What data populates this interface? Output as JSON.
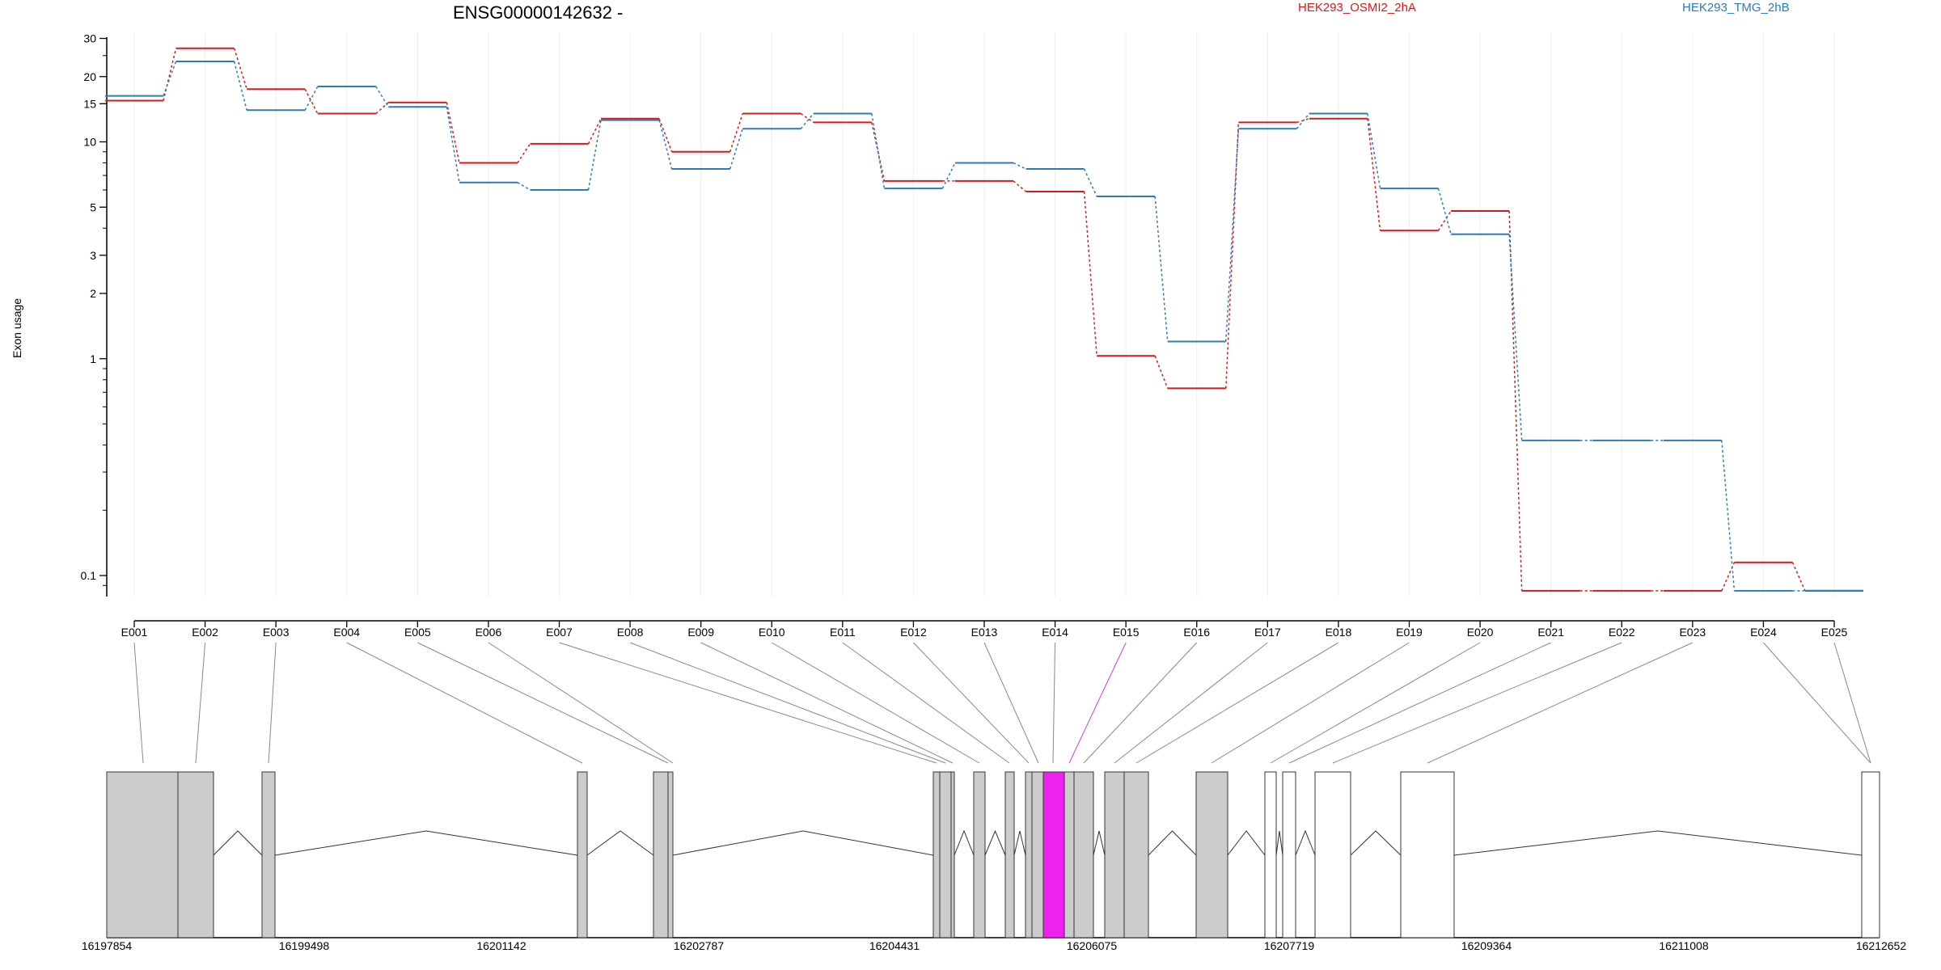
{
  "chart_data": {
    "type": "line",
    "title": "ENSG00000142632 -",
    "ylabel": "Exon usage",
    "y_scale": "log",
    "ylim": [
      0.08,
      32
    ],
    "y_ticks": [
      0.1,
      1,
      2,
      3,
      5,
      10,
      15,
      20,
      30
    ],
    "grid": "vertical",
    "legend": [
      {
        "name": "HEK293_OSMI2_2hA",
        "color": "#d7191c"
      },
      {
        "name": "HEK293_TMG_2hB",
        "color": "#2c7bb6"
      }
    ],
    "categories": [
      "E001",
      "E002",
      "E003",
      "E004",
      "E005",
      "E006",
      "E007",
      "E008",
      "E009",
      "E010",
      "E011",
      "E012",
      "E013",
      "E014",
      "E015",
      "E016",
      "E017",
      "E018",
      "E019",
      "E020",
      "E021",
      "E022",
      "E023",
      "E024",
      "E025"
    ],
    "series": [
      {
        "name": "HEK293_OSMI2_2hA",
        "color": "#d7191c",
        "values": [
          15.5,
          27,
          17.5,
          13.5,
          15.2,
          8,
          9.8,
          12.8,
          9,
          13.5,
          12.3,
          6.6,
          6.6,
          5.9,
          1.03,
          0.73,
          12.3,
          12.8,
          3.9,
          4.8,
          0.085,
          0.085,
          0.085,
          0.115,
          0.085
        ]
      },
      {
        "name": "HEK293_TMG_2hB",
        "color": "#2c7bb6",
        "values": [
          16.3,
          23.5,
          14,
          18,
          14.5,
          6.5,
          6,
          12.6,
          7.5,
          11.5,
          13.5,
          6.1,
          8,
          7.5,
          5.6,
          1.2,
          11.5,
          13.5,
          6.1,
          3.75,
          0.42,
          0.42,
          0.42,
          0.085,
          0.085
        ]
      }
    ],
    "gene_model": {
      "coordinate_labels": [
        "16197854",
        "16199498",
        "16201142",
        "16202787",
        "16204431",
        "16206075",
        "16207719",
        "16209364",
        "16211008",
        "16212652"
      ],
      "highlighted_exon": "E015",
      "highlight_color": "#ee22ee",
      "exon_fill": "#cccccc"
    }
  }
}
